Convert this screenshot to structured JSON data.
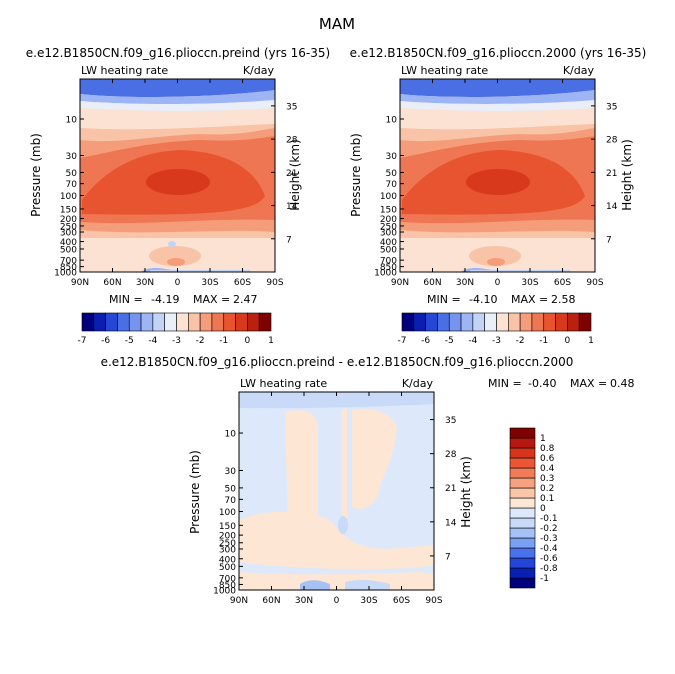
{
  "figure": {
    "title": "MAM"
  },
  "colors": {
    "palette16": [
      "#00007f",
      "#0c1eb0",
      "#2447d5",
      "#4a6ee4",
      "#7593ef",
      "#9db5f4",
      "#c3d3f8",
      "#e9eef9",
      "#fbe2d3",
      "#f8c3a6",
      "#f59d7b",
      "#ef7652",
      "#e85430",
      "#d8391c",
      "#b9200f",
      "#7f0000"
    ],
    "palette_diff": [
      "#00007f",
      "#0a1fb3",
      "#2446d8",
      "#4c71ec",
      "#7aa0f3",
      "#a4c2f6",
      "#c9daf8",
      "#dde9fb",
      "#fde6d4",
      "#fac6a8",
      "#f6a17f",
      "#f27c58",
      "#ec5636",
      "#d6341d",
      "#b8170f",
      "#7f0000"
    ]
  },
  "chart_data": [
    {
      "type": "heatmap",
      "title": "e.e12.B1850CN.f09_g16.plioccn.preind (yrs 16-35)",
      "variable_label": "LW heating rate",
      "units_label": "K/day",
      "xlabel": "",
      "ylabel": "Pressure (mb)",
      "y2label": "Height (km)",
      "x_ticks": [
        "90N",
        "60N",
        "30N",
        "0",
        "30S",
        "60S",
        "90S"
      ],
      "x_tick_values": [
        90,
        60,
        30,
        0,
        -30,
        -60,
        -90
      ],
      "xlim": [
        90,
        -90
      ],
      "y_ticks": [
        "10",
        "30",
        "50",
        "70",
        "100",
        "150",
        "200",
        "250",
        "300",
        "400",
        "500",
        "700",
        "850",
        "1000"
      ],
      "y_tick_values": [
        10,
        30,
        50,
        70,
        100,
        150,
        200,
        250,
        300,
        400,
        500,
        700,
        850,
        1000
      ],
      "ylim": [
        1000,
        3
      ],
      "y2_ticks": [
        "35",
        "28",
        "21",
        "14",
        "7"
      ],
      "y2_tick_values": [
        35,
        28,
        21,
        14,
        7
      ],
      "min_label": "MIN =",
      "min_value": "-4.19",
      "max_label": "MAX =",
      "max_value": "2.47",
      "colorbar_labels": [
        "-7",
        "-6",
        "-5",
        "-4",
        "-3",
        "-2",
        "-1",
        "0",
        "1"
      ],
      "colorbar_levels": [
        -7,
        -6.5,
        -6,
        -5.5,
        -5,
        -4.5,
        -4,
        -3.5,
        -3,
        -2.5,
        -2,
        -1.5,
        -1,
        -0.5,
        0,
        0.5,
        1
      ]
    },
    {
      "type": "heatmap",
      "title": "e.e12.B1850CN.f09_g16.plioccn.2000 (yrs 16-35)",
      "variable_label": "LW heating rate",
      "units_label": "K/day",
      "xlabel": "",
      "ylabel": "Pressure (mb)",
      "y2label": "Height (km)",
      "x_ticks": [
        "90N",
        "60N",
        "30N",
        "0",
        "30S",
        "60S",
        "90S"
      ],
      "x_tick_values": [
        90,
        60,
        30,
        0,
        -30,
        -60,
        -90
      ],
      "xlim": [
        90,
        -90
      ],
      "y_ticks": [
        "10",
        "30",
        "50",
        "70",
        "100",
        "150",
        "200",
        "250",
        "300",
        "400",
        "500",
        "700",
        "850",
        "1000"
      ],
      "y_tick_values": [
        10,
        30,
        50,
        70,
        100,
        150,
        200,
        250,
        300,
        400,
        500,
        700,
        850,
        1000
      ],
      "ylim": [
        1000,
        3
      ],
      "y2_ticks": [
        "35",
        "28",
        "21",
        "14",
        "7"
      ],
      "y2_tick_values": [
        35,
        28,
        21,
        14,
        7
      ],
      "min_label": "MIN =",
      "min_value": "-4.10",
      "max_label": "MAX =",
      "max_value": "2.58",
      "colorbar_labels": [
        "-7",
        "-6",
        "-5",
        "-4",
        "-3",
        "-2",
        "-1",
        "0",
        "1"
      ],
      "colorbar_levels": [
        -7,
        -6.5,
        -6,
        -5.5,
        -5,
        -4.5,
        -4,
        -3.5,
        -3,
        -2.5,
        -2,
        -1.5,
        -1,
        -0.5,
        0,
        0.5,
        1
      ]
    },
    {
      "type": "heatmap",
      "title": "e.e12.B1850CN.f09_g16.plioccn.preind - e.e12.B1850CN.f09_g16.plioccn.2000",
      "variable_label": "LW heating rate",
      "units_label": "K/day",
      "xlabel": "",
      "ylabel": "Pressure (mb)",
      "y2label": "Height (km)",
      "x_ticks": [
        "90N",
        "60N",
        "30N",
        "0",
        "30S",
        "60S",
        "90S"
      ],
      "x_tick_values": [
        90,
        60,
        30,
        0,
        -30,
        -60,
        -90
      ],
      "xlim": [
        90,
        -90
      ],
      "y_ticks": [
        "10",
        "30",
        "50",
        "70",
        "100",
        "150",
        "200",
        "250",
        "300",
        "400",
        "500",
        "700",
        "850",
        "1000"
      ],
      "y_tick_values": [
        10,
        30,
        50,
        70,
        100,
        150,
        200,
        250,
        300,
        400,
        500,
        700,
        850,
        1000
      ],
      "ylim": [
        1000,
        3
      ],
      "y2_ticks": [
        "35",
        "28",
        "21",
        "14",
        "7"
      ],
      "y2_tick_values": [
        35,
        28,
        21,
        14,
        7
      ],
      "min_label": "MIN =",
      "min_value": "-0.40",
      "max_label": "MAX =",
      "max_value": "0.48",
      "colorbar_labels": [
        "1",
        "0.8",
        "0.6",
        "0.4",
        "0.3",
        "0.2",
        "0.1",
        "0",
        "-0.1",
        "-0.2",
        "-0.3",
        "-0.4",
        "-0.6",
        "-0.8",
        "-1"
      ],
      "colorbar_levels": [
        -1,
        -0.8,
        -0.6,
        -0.4,
        -0.3,
        -0.2,
        -0.1,
        0,
        0.1,
        0.2,
        0.3,
        0.4,
        0.6,
        0.8,
        1
      ]
    }
  ]
}
